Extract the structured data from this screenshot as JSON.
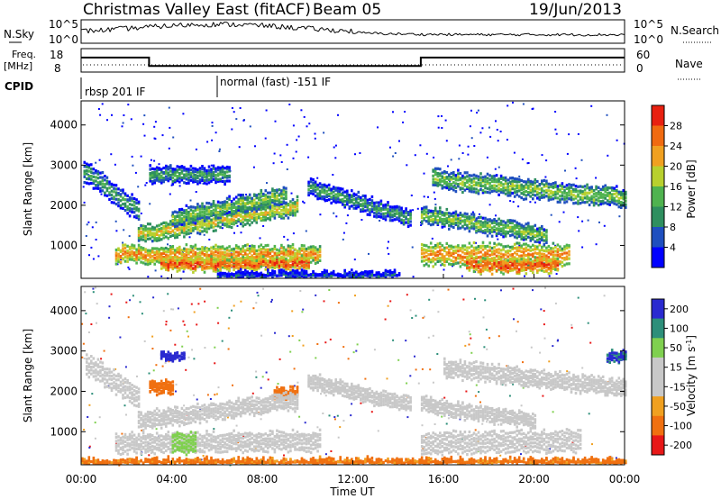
{
  "header": {
    "title": "Christmas Valley East (fitACF)",
    "beam": "Beam 05",
    "date": "19/Jun/2013"
  },
  "top_panels": {
    "nsky_label": "N.Sky",
    "nsearch_label": "N.Search",
    "nsky_tick_top": "10^5",
    "nsky_tick_bottom": "10^0",
    "nsearch_tick_top": "10^5",
    "nsearch_tick_bottom": "10^0",
    "freq_label_1": "Freq.",
    "freq_label_2": "[MHz]",
    "freq_tick_top": "18",
    "freq_tick_bottom": "8",
    "nave_label": "Nave",
    "nave_tick_top": "60",
    "nave_tick_bottom": "0",
    "cpid_label": "CPID",
    "cpid_segments": [
      "rbsp 201 IF",
      "normal (fast) -151 IF"
    ]
  },
  "colors": {
    "power_scale": [
      "#0000ff",
      "#1f4fbf",
      "#2f8f5f",
      "#4fb34f",
      "#b8d02e",
      "#f0a020",
      "#f06a10",
      "#e82010"
    ],
    "velocity_scale": [
      "#2a2ad0",
      "#2d8f7a",
      "#7fd04f",
      "#c8c8c8",
      "#c8c8c8",
      "#f0a020",
      "#f07010",
      "#e81818"
    ]
  },
  "chart_data": [
    {
      "type": "heatmap",
      "title": "Power",
      "xlabel": "",
      "ylabel": "Slant Range [km]",
      "xlim_hours": [
        0,
        24
      ],
      "ylim": [
        180,
        4600
      ],
      "yticks": [
        "1000",
        "2000",
        "3000",
        "4000"
      ],
      "colorbar": {
        "label": "Power [dB]",
        "ticks": [
          "4",
          "8",
          "12",
          "16",
          "20",
          "24",
          "28"
        ],
        "range": [
          0,
          32
        ]
      },
      "bands": [
        {
          "t_start": 0.1,
          "t_end": 2.5,
          "range_start": 2900,
          "range_end": 1900,
          "width": 450,
          "level": 3
        },
        {
          "t_start": 1.5,
          "t_end": 10.5,
          "range_start": 800,
          "range_end": 800,
          "width": 350,
          "level": 6
        },
        {
          "t_start": 3.5,
          "t_end": 10.0,
          "range_start": 550,
          "range_end": 600,
          "width": 250,
          "level": 7
        },
        {
          "t_start": 2.5,
          "t_end": 9.5,
          "range_start": 1300,
          "range_end": 2000,
          "width": 350,
          "level": 5
        },
        {
          "t_start": 4.0,
          "t_end": 9.0,
          "range_start": 1700,
          "range_end": 2300,
          "width": 350,
          "level": 4
        },
        {
          "t_start": 3.0,
          "t_end": 6.5,
          "range_start": 2800,
          "range_end": 2800,
          "width": 350,
          "level": 3
        },
        {
          "t_start": 10.0,
          "t_end": 14.5,
          "range_start": 2500,
          "range_end": 1700,
          "width": 350,
          "level": 3
        },
        {
          "t_start": 15.0,
          "t_end": 21.5,
          "range_start": 800,
          "range_end": 800,
          "width": 450,
          "level": 6
        },
        {
          "t_start": 17.0,
          "t_end": 21.0,
          "range_start": 550,
          "range_end": 550,
          "width": 300,
          "level": 7
        },
        {
          "t_start": 15.0,
          "t_end": 20.5,
          "range_start": 1800,
          "range_end": 1300,
          "width": 350,
          "level": 4
        },
        {
          "t_start": 15.5,
          "t_end": 24.0,
          "range_start": 2700,
          "range_end": 2200,
          "width": 400,
          "level": 4
        },
        {
          "t_start": 6.0,
          "t_end": 14.0,
          "range_start": 280,
          "range_end": 280,
          "width": 150,
          "level": 2
        }
      ]
    },
    {
      "type": "heatmap",
      "title": "Velocity",
      "xlabel": "Time UT",
      "ylabel": "Slant Range [km]",
      "xlim_hours": [
        0,
        24
      ],
      "ylim": [
        180,
        4600
      ],
      "xticks": [
        "00:00",
        "04:00",
        "08:00",
        "12:00",
        "16:00",
        "20:00",
        "00:00"
      ],
      "yticks": [
        "1000",
        "2000",
        "3000",
        "4000"
      ],
      "colorbar": {
        "label": "Velocity [m s^-1]",
        "ticks": [
          "200",
          "100",
          "50",
          "15",
          "-15",
          "-50",
          "-100",
          "-200"
        ],
        "range": [
          -250,
          250
        ]
      },
      "bands": [
        {
          "t_start": 0.2,
          "t_end": 2.5,
          "range_start": 2700,
          "range_end": 1900,
          "width": 450,
          "value": 0
        },
        {
          "t_start": 1.5,
          "t_end": 10.5,
          "range_start": 750,
          "range_end": 800,
          "width": 400,
          "value": 0
        },
        {
          "t_start": 4.0,
          "t_end": 5.0,
          "range_start": 750,
          "range_end": 750,
          "width": 400,
          "value": 60
        },
        {
          "t_start": 3.5,
          "t_end": 4.5,
          "range_start": 2900,
          "range_end": 2900,
          "width": 150,
          "value": 180
        },
        {
          "t_start": 3.0,
          "t_end": 4.0,
          "range_start": 2150,
          "range_end": 2150,
          "width": 250,
          "value": -70
        },
        {
          "t_start": 8.5,
          "t_end": 9.5,
          "range_start": 2000,
          "range_end": 2000,
          "width": 200,
          "value": -70
        },
        {
          "t_start": 2.5,
          "t_end": 9.5,
          "range_start": 1300,
          "range_end": 1800,
          "width": 350,
          "value": 0
        },
        {
          "t_start": 10.0,
          "t_end": 14.5,
          "range_start": 2300,
          "range_end": 1700,
          "width": 300,
          "value": 0
        },
        {
          "t_start": 15.0,
          "t_end": 22.0,
          "range_start": 750,
          "range_end": 800,
          "width": 450,
          "value": 0
        },
        {
          "t_start": 15.0,
          "t_end": 20.0,
          "range_start": 1700,
          "range_end": 1300,
          "width": 300,
          "value": 0
        },
        {
          "t_start": 16.0,
          "t_end": 24.0,
          "range_start": 2600,
          "range_end": 2100,
          "width": 350,
          "value": 0
        },
        {
          "t_start": 23.2,
          "t_end": 24.0,
          "range_start": 2900,
          "range_end": 2900,
          "width": 200,
          "value": 150
        },
        {
          "t_start": 0.0,
          "t_end": 24.0,
          "range_start": 260,
          "range_end": 260,
          "width": 150,
          "value": -60
        }
      ]
    }
  ],
  "freq_series": {
    "t": [
      0,
      3,
      3,
      15,
      15,
      24
    ],
    "mhz": [
      14.2,
      14.2,
      10.6,
      10.6,
      14.2,
      14.2
    ]
  }
}
